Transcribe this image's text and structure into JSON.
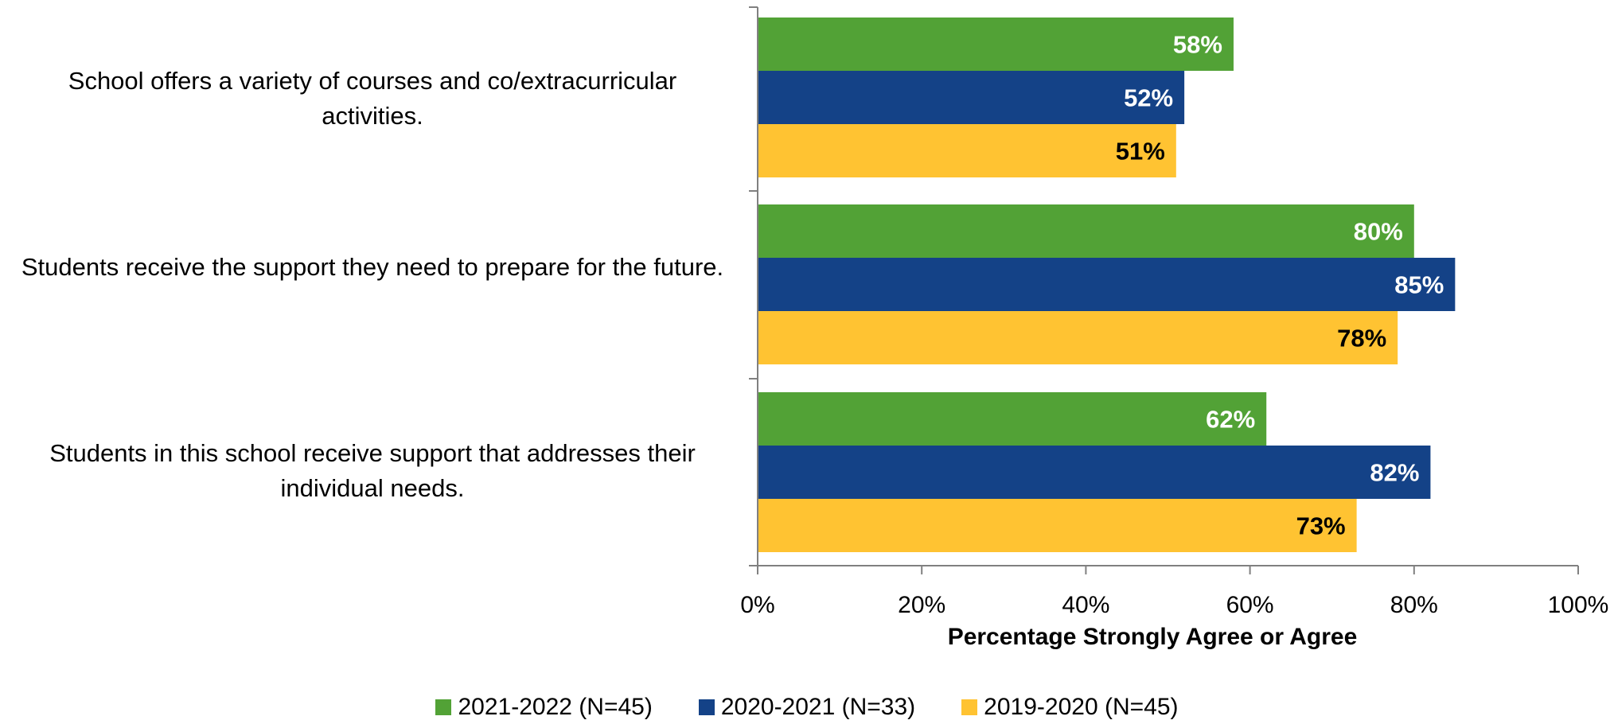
{
  "chart_data": {
    "type": "bar",
    "orientation": "horizontal",
    "categories": [
      "School offers a variety of courses and co/extracurricular activities.",
      "Students receive the support they need to prepare for the future.",
      "Students in this school receive support that addresses their individual needs."
    ],
    "series": [
      {
        "name": "2021-2022 (N=45)",
        "color": "#52A236",
        "label_color": "#ffffff",
        "values": [
          58,
          80,
          62
        ]
      },
      {
        "name": "2020-2021 (N=33)",
        "color": "#144287",
        "label_color": "#ffffff",
        "values": [
          52,
          85,
          82
        ]
      },
      {
        "name": "2019-2020 (N=45)",
        "color": "#FFC332",
        "label_color": "#000000",
        "values": [
          51,
          78,
          73
        ]
      }
    ],
    "value_labels": [
      [
        "58%",
        "80%",
        "62%"
      ],
      [
        "52%",
        "85%",
        "82%"
      ],
      [
        "51%",
        "78%",
        "73%"
      ]
    ],
    "xlabel": "Percentage Strongly Agree or Agree",
    "xlim": [
      0,
      100
    ],
    "xticks": [
      0,
      20,
      40,
      60,
      80,
      100
    ],
    "xtick_labels": [
      "0%",
      "20%",
      "40%",
      "60%",
      "80%",
      "100%"
    ],
    "grid": false,
    "legend_position": "bottom"
  }
}
